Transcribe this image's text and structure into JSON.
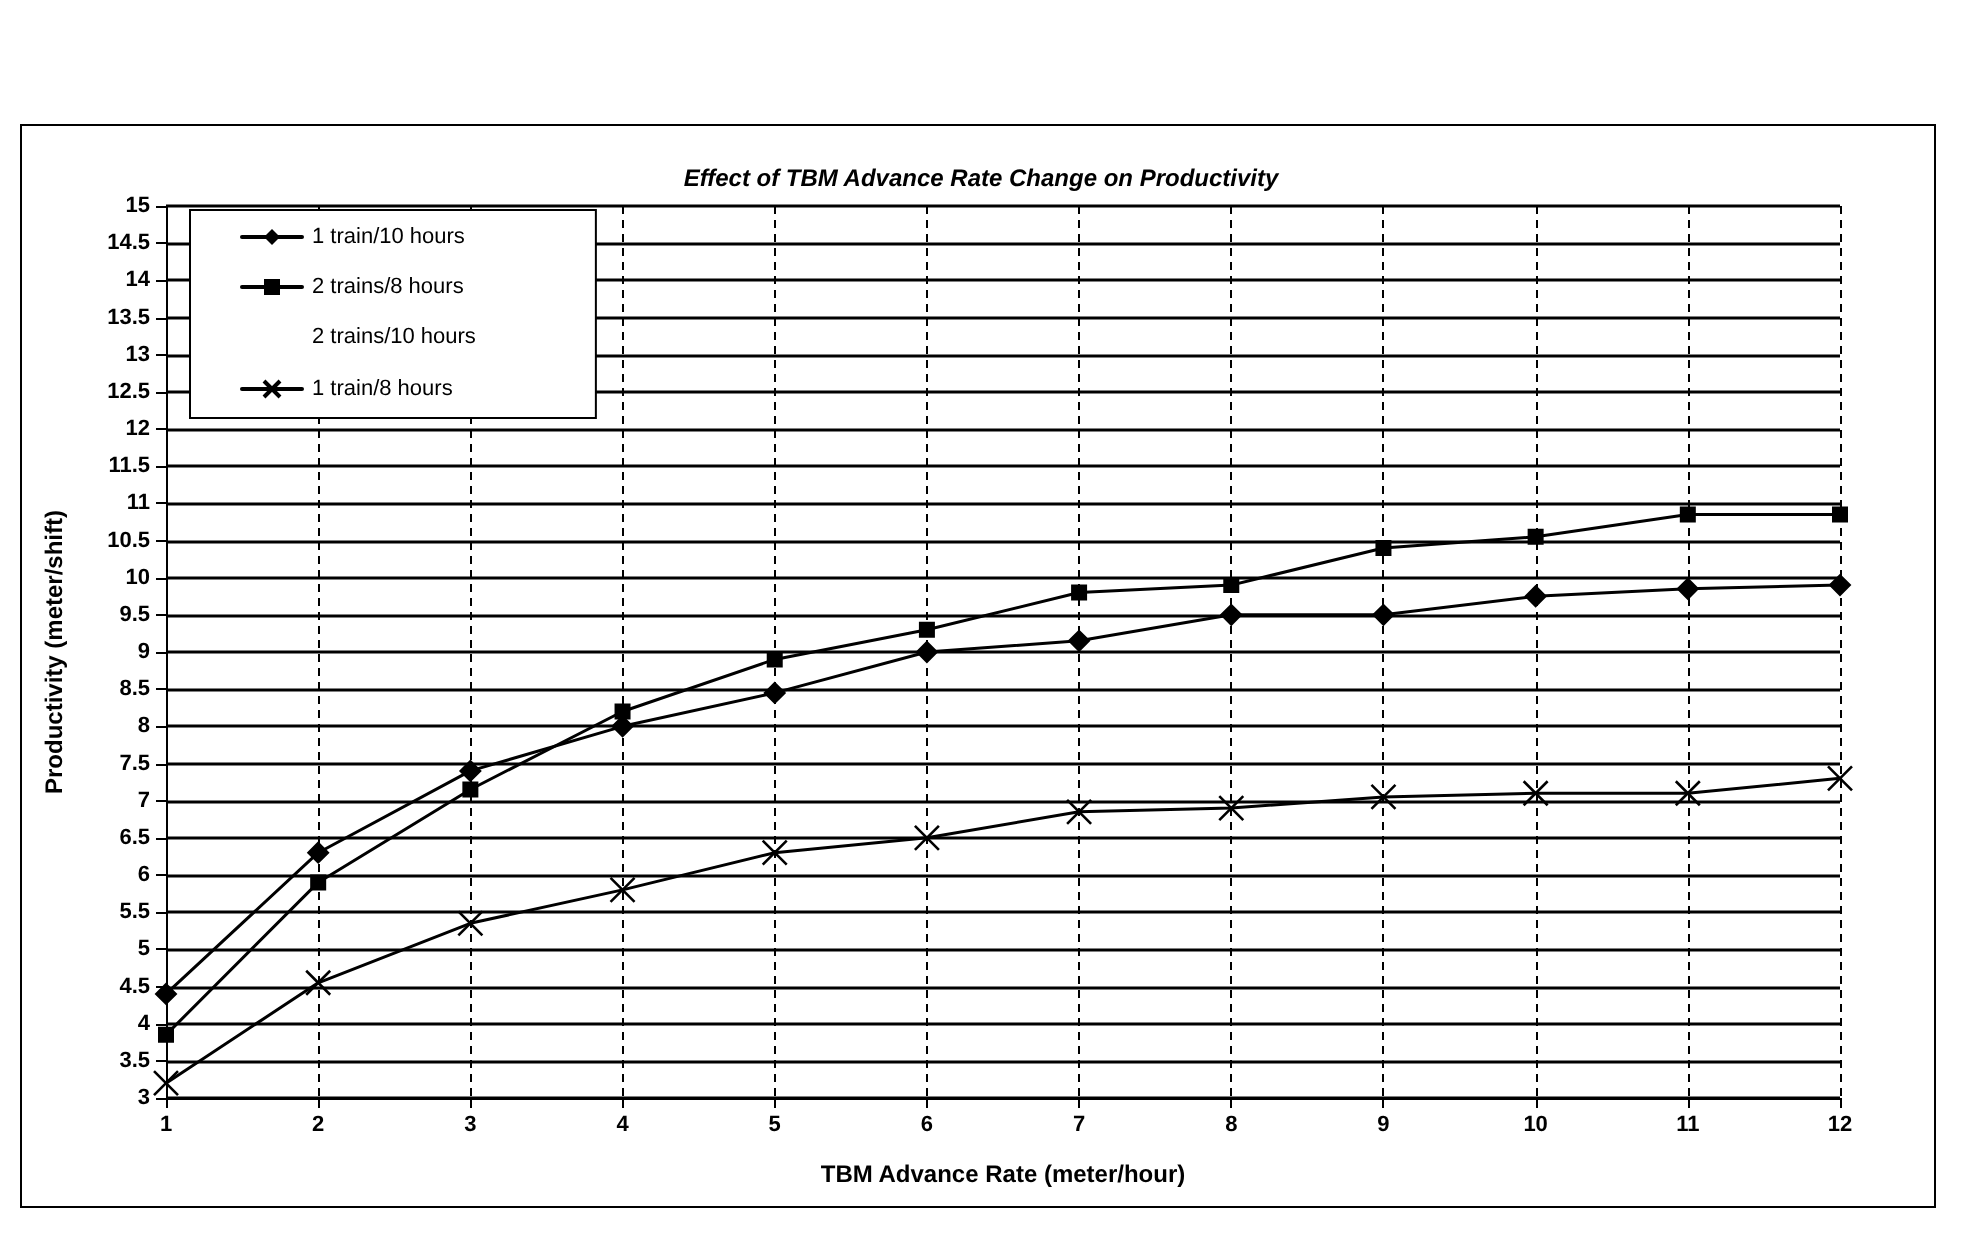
{
  "chart_data": {
    "type": "line",
    "title": "Effect of TBM Advance Rate Change on Productivity",
    "xlabel": "TBM Advance Rate (meter/hour)",
    "ylabel": "Productivity (meter/shift)",
    "x": [
      1,
      2,
      3,
      4,
      5,
      6,
      7,
      8,
      9,
      10,
      11,
      12
    ],
    "series": [
      {
        "name": "1 train/10 hours",
        "color": "#000000",
        "marker": "diamond",
        "values": [
          4.4,
          6.3,
          7.4,
          8.0,
          8.45,
          9.0,
          9.15,
          9.5,
          9.5,
          9.75,
          9.85,
          9.9
        ]
      },
      {
        "name": "2 trains/8 hours",
        "color": "#000000",
        "marker": "square",
        "values": [
          3.85,
          5.9,
          7.15,
          8.2,
          8.9,
          9.3,
          9.8,
          9.9,
          10.4,
          10.55,
          10.85,
          10.85
        ]
      },
      {
        "name": "2 trains/10 hours",
        "marker": "none",
        "values": [
          null,
          null,
          null,
          null,
          null,
          null,
          null,
          null,
          null,
          null,
          null,
          null
        ]
      },
      {
        "name": "1 train/8 hours",
        "color": "#000000",
        "marker": "cross",
        "values": [
          3.2,
          4.55,
          5.35,
          5.8,
          6.3,
          6.5,
          6.85,
          6.9,
          7.05,
          7.1,
          7.1,
          7.3
        ]
      }
    ],
    "xlim": [
      1,
      12
    ],
    "xticks": [
      1,
      2,
      3,
      4,
      5,
      6,
      7,
      8,
      9,
      10,
      11,
      12
    ],
    "ylim": [
      3,
      15
    ],
    "yticks": [
      3,
      3.5,
      4,
      4.5,
      5,
      5.5,
      6,
      6.5,
      7,
      7.5,
      8,
      8.5,
      9,
      9.5,
      10,
      10.5,
      11,
      11.5,
      12,
      12.5,
      13,
      13.5,
      14,
      14.5,
      15
    ],
    "grid": true,
    "legend": "top left",
    "line_style": "solid"
  }
}
